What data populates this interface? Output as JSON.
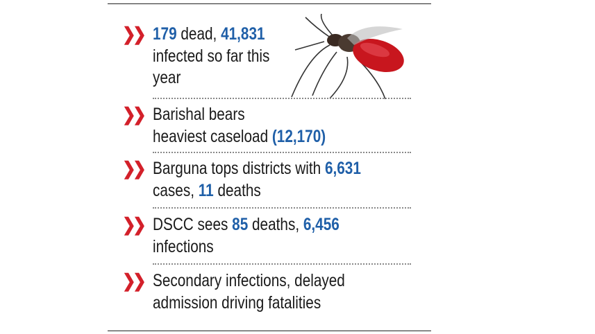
{
  "items": [
    {
      "lines": [
        [
          {
            "text": "179",
            "highlight": true
          },
          {
            "text": " dead, "
          },
          {
            "text": "41,831",
            "highlight": true
          }
        ],
        [
          {
            "text": "infected so far this"
          }
        ],
        [
          {
            "text": "year"
          }
        ]
      ]
    },
    {
      "lines": [
        [
          {
            "text": "Barishal bears"
          }
        ],
        [
          {
            "text": "heaviest caseload "
          },
          {
            "text": "(12,170)",
            "highlight": true
          }
        ]
      ]
    },
    {
      "lines": [
        [
          {
            "text": "Barguna tops districts with "
          },
          {
            "text": "6,631",
            "highlight": true
          }
        ],
        [
          {
            "text": "cases, "
          },
          {
            "text": "11",
            "highlight": true
          },
          {
            "text": " deaths"
          }
        ]
      ]
    },
    {
      "lines": [
        [
          {
            "text": "DSCC sees "
          },
          {
            "text": "85",
            "highlight": true
          },
          {
            "text": " deaths, "
          },
          {
            "text": "6,456",
            "highlight": true
          }
        ],
        [
          {
            "text": "infections"
          }
        ]
      ]
    },
    {
      "lines": [
        [
          {
            "text": "Secondary infections, delayed"
          }
        ],
        [
          {
            "text": "admission driving fatalities"
          }
        ]
      ]
    }
  ]
}
